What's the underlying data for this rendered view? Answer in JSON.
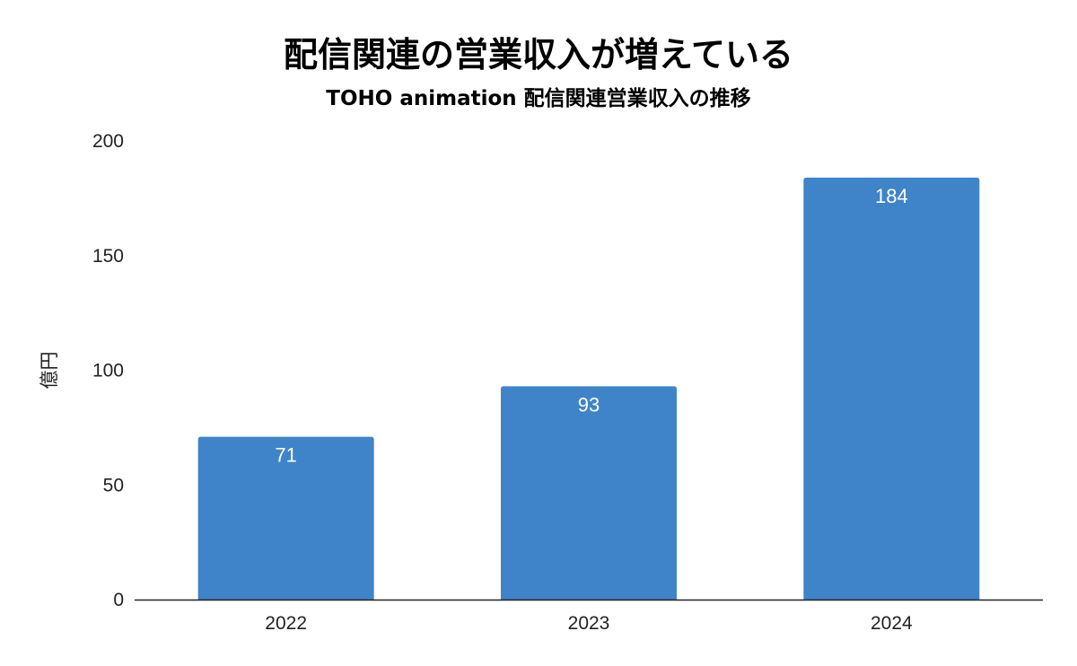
{
  "chart_data": {
    "type": "bar",
    "title": "配信関連の営業収入が増えている",
    "subtitle": "TOHO animation 配信関連営業収入の推移",
    "xlabel": "",
    "ylabel": "億円",
    "categories": [
      "2022",
      "2023",
      "2024"
    ],
    "values": [
      71,
      93,
      184
    ],
    "data_labels": [
      "71",
      "93",
      "184"
    ],
    "ylim": [
      0,
      200
    ],
    "yticks": [
      0,
      50,
      100,
      150,
      200
    ],
    "ytick_labels": [
      "0",
      "50",
      "100",
      "150",
      "200"
    ],
    "bar_color": "#3f84c8",
    "grid": false,
    "legend": "none"
  }
}
